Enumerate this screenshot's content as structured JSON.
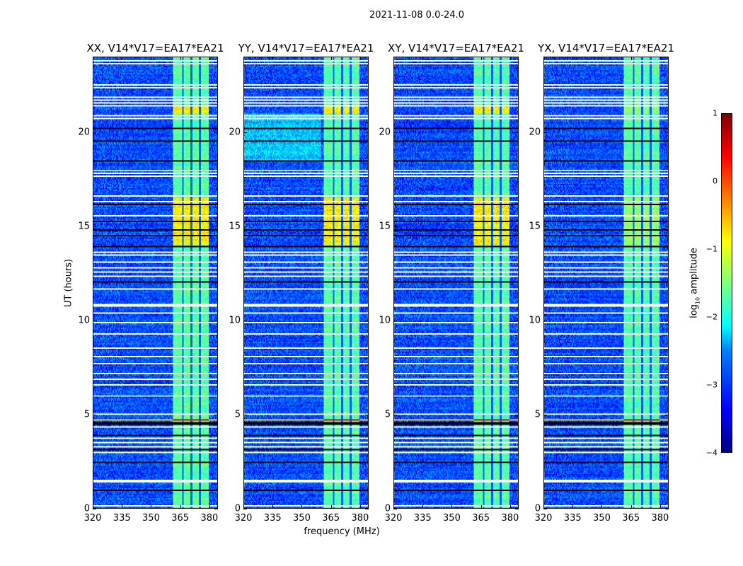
{
  "chart_data": [
    {
      "type": "heatmap",
      "title": "XX, V14*V17=EA17*EA21",
      "pol": "XX"
    },
    {
      "type": "heatmap",
      "title": "YY, V14*V17=EA17*EA21",
      "pol": "YY"
    },
    {
      "type": "heatmap",
      "title": "XY, V14*V17=EA17*EA21",
      "pol": "XY"
    },
    {
      "type": "heatmap",
      "title": "YX, V14*V17=EA17*EA21",
      "pol": "YX"
    }
  ],
  "figure": {
    "suptitle": "2021-11-08 0.0-24.0",
    "xlabel": "frequency (MHz)",
    "ylabel": "UT (hours)",
    "xlim": [
      320,
      384.4
    ],
    "ylim": [
      0,
      24
    ],
    "xticks": [
      "320",
      "335",
      "350",
      "365",
      "380"
    ],
    "xtick_values": [
      320,
      335,
      350,
      365,
      380
    ],
    "yticks": [
      "0",
      "5",
      "10",
      "15",
      "20"
    ],
    "ytick_values": [
      0,
      5,
      10,
      15,
      20
    ],
    "colormap": "jet",
    "colorbar": {
      "label": "log10 amplitude",
      "label_main": "log",
      "label_sub": "10",
      "label_rest": " amplitude",
      "range": [
        -4,
        1
      ],
      "ticks": [
        "1",
        "0",
        "−1",
        "−2",
        "−3",
        "−4"
      ],
      "tick_values": [
        1,
        0,
        -1,
        -2,
        -3,
        -4
      ]
    },
    "model": {
      "background_log_amp": -3.0,
      "bright_band_mhz": [
        361.5,
        380
      ],
      "bright_band_log_amp": -1.7,
      "subband_gaps_mhz": [
        366.5,
        371,
        375.5
      ],
      "flagged_hours": [
        23.85,
        23.7,
        22.55,
        22.45,
        21.9,
        21.75,
        21.6,
        21.45,
        20.9,
        20.8,
        18.0,
        17.85,
        17.7,
        16.65,
        16.35,
        15.55,
        13.6,
        13.45,
        13.1,
        12.8,
        12.6,
        12.35,
        11.65,
        10.85,
        10.75,
        10.35,
        9.85,
        9.25,
        8.5,
        8.05,
        7.65,
        7.15,
        6.85,
        6.55,
        5.95,
        5.0,
        4.3,
        3.65,
        3.45,
        3.2,
        2.95,
        1.42,
        1.38,
        1.34,
        0.05
      ],
      "dropout_hours": [
        20.25,
        19.55,
        18.5,
        16.2,
        15.3,
        14.8,
        14.5,
        13.9,
        12.05,
        4.5,
        4.42,
        3.8,
        3.05,
        2.4,
        0.9
      ],
      "high_rfi_hours": [
        4.7,
        4.65
      ],
      "enhanced_band_hours": [
        [
          14.0,
          16.5
        ],
        [
          21.0,
          21.5
        ]
      ]
    }
  }
}
